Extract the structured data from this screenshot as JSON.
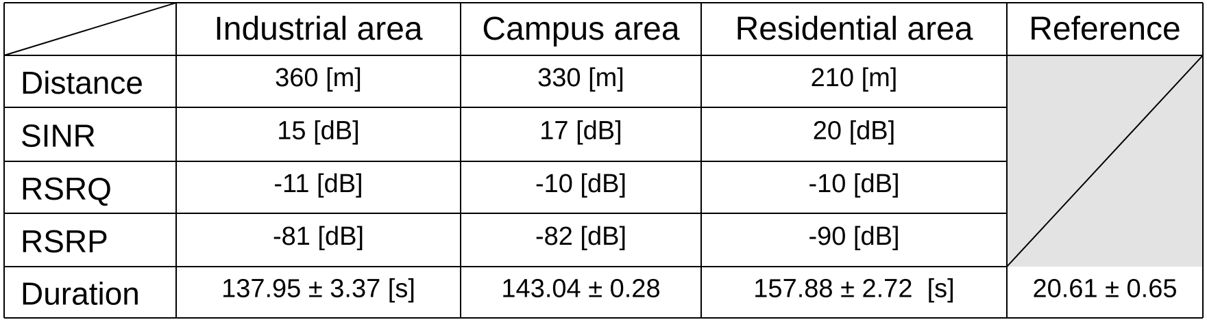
{
  "table": {
    "header": [
      "Industrial area",
      "Campus area",
      "Residential area",
      "Reference"
    ],
    "rows": [
      [
        "Distance",
        "360 [m]",
        "330 [m]",
        "210 [m]"
      ],
      [
        "SINR",
        "15 [dB]",
        "17 [dB]",
        "20 [dB]"
      ],
      [
        "RSRQ",
        "-11 [dB]",
        "-10 [dB]",
        "-10 [dB]"
      ],
      [
        "RSRP",
        "-81 [dB]",
        "-82 [dB]",
        "-90 [dB]"
      ],
      [
        "Duration",
        "137.95 ± 3.37 [s]",
        "143.04 ± 0.28",
        "157.88 ± 2.72  [s]",
        "20.61 ± 0.65"
      ]
    ]
  }
}
